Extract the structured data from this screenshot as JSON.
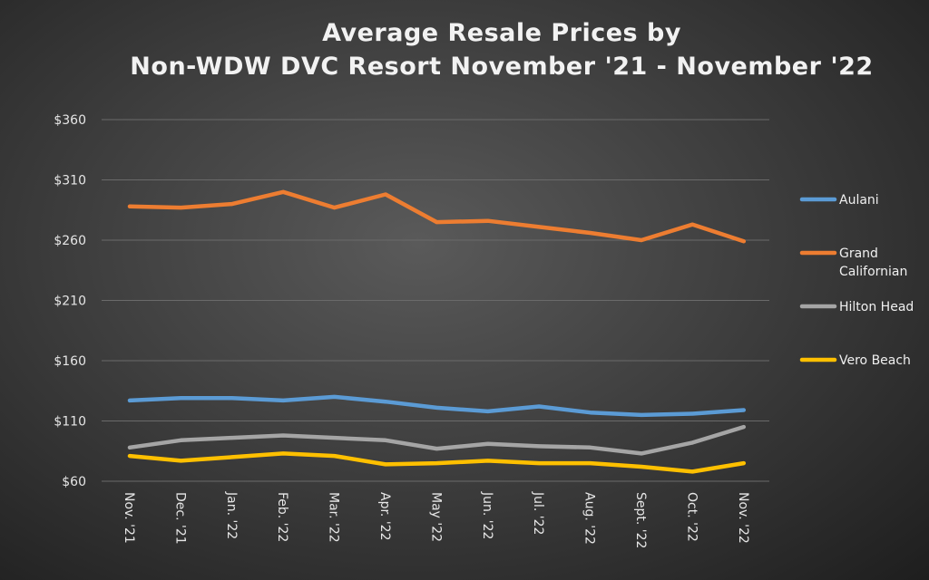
{
  "chart_data": {
    "type": "line",
    "title_lines": [
      "Average Resale Prices by",
      "Non-WDW DVC Resort November '21 - November '22"
    ],
    "xlabel": "",
    "ylabel": "",
    "categories": [
      "Nov. '21",
      "Dec. '21",
      "Jan. '22",
      "Feb. '22",
      "Mar. '22",
      "Apr. '22",
      "May '22",
      "Jun. '22",
      "Jul. '22",
      "Aug. '22",
      "Sept. '22",
      "Oct. '22",
      "Nov. '22"
    ],
    "ylim": [
      60,
      360
    ],
    "yticks": [
      60,
      110,
      160,
      210,
      260,
      310,
      360
    ],
    "ytick_labels": [
      "$60",
      "$110",
      "$160",
      "$210",
      "$260",
      "$310",
      "$360"
    ],
    "grid": true,
    "legend_position": "right",
    "series": [
      {
        "name": "Aulani",
        "color": "#5b9bd5",
        "values": [
          127,
          129,
          129,
          127,
          130,
          126,
          121,
          118,
          122,
          117,
          115,
          116,
          119
        ]
      },
      {
        "name": "Grand Californian",
        "color": "#ed7d31",
        "values": [
          288,
          287,
          290,
          300,
          287,
          298,
          275,
          276,
          271,
          266,
          260,
          273,
          259
        ]
      },
      {
        "name": "Hilton Head",
        "color": "#a5a5a5",
        "values": [
          88,
          94,
          96,
          98,
          96,
          94,
          87,
          91,
          89,
          88,
          83,
          92,
          105
        ]
      },
      {
        "name": "Vero Beach",
        "color": "#ffc000",
        "values": [
          81,
          77,
          80,
          83,
          81,
          74,
          75,
          77,
          75,
          75,
          72,
          68,
          75
        ]
      }
    ]
  }
}
